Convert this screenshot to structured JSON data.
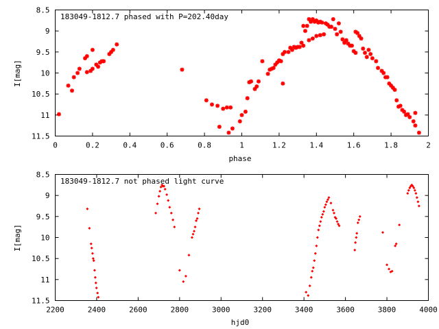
{
  "chart_data": [
    {
      "type": "scatter",
      "title": "183049-1812.7 phased with P=202.40day",
      "xlabel": "phase",
      "ylabel": "I[mag]",
      "xlim": [
        0,
        2
      ],
      "ylim": [
        11.5,
        8.5
      ],
      "y_inverted": true,
      "xticks": [
        "0",
        "0.2",
        "0.4",
        "0.6",
        "0.8",
        "1",
        "1.2",
        "1.4",
        "1.6",
        "1.8",
        "2"
      ],
      "yticks": [
        "8.5",
        "9",
        "9.5",
        "10",
        "10.5",
        "11",
        "11.5"
      ],
      "marker": "asterisk",
      "color": "#ff0000",
      "points": [
        [
          0.02,
          10.98
        ],
        [
          0.07,
          10.3
        ],
        [
          0.09,
          10.42
        ],
        [
          0.1,
          10.1
        ],
        [
          0.12,
          10.0
        ],
        [
          0.13,
          9.9
        ],
        [
          0.16,
          9.65
        ],
        [
          0.17,
          9.6
        ],
        [
          0.17,
          9.98
        ],
        [
          0.19,
          9.95
        ],
        [
          0.2,
          9.45
        ],
        [
          0.2,
          9.9
        ],
        [
          0.22,
          9.8
        ],
        [
          0.23,
          9.85
        ],
        [
          0.24,
          9.75
        ],
        [
          0.25,
          9.72
        ],
        [
          0.26,
          9.72
        ],
        [
          0.29,
          9.55
        ],
        [
          0.3,
          9.5
        ],
        [
          0.31,
          9.45
        ],
        [
          0.33,
          9.32
        ],
        [
          0.68,
          9.92
        ],
        [
          0.81,
          10.65
        ],
        [
          0.84,
          10.75
        ],
        [
          0.87,
          10.78
        ],
        [
          0.88,
          11.28
        ],
        [
          0.9,
          10.85
        ],
        [
          0.92,
          10.82
        ],
        [
          0.93,
          11.42
        ],
        [
          0.94,
          10.82
        ],
        [
          0.95,
          11.32
        ],
        [
          0.99,
          11.15
        ],
        [
          1.0,
          11.0
        ],
        [
          1.02,
          10.92
        ],
        [
          1.03,
          10.6
        ],
        [
          1.04,
          10.22
        ],
        [
          1.05,
          10.2
        ],
        [
          1.07,
          10.38
        ],
        [
          1.08,
          10.32
        ],
        [
          1.09,
          10.2
        ],
        [
          1.11,
          9.72
        ],
        [
          1.14,
          10.02
        ],
        [
          1.15,
          9.92
        ],
        [
          1.16,
          9.9
        ],
        [
          1.17,
          9.88
        ],
        [
          1.18,
          9.8
        ],
        [
          1.19,
          9.75
        ],
        [
          1.2,
          9.7
        ],
        [
          1.21,
          9.72
        ],
        [
          1.22,
          10.25
        ],
        [
          1.22,
          9.55
        ],
        [
          1.23,
          9.5
        ],
        [
          1.25,
          9.5
        ],
        [
          1.26,
          9.4
        ],
        [
          1.27,
          9.45
        ],
        [
          1.28,
          9.38
        ],
        [
          1.29,
          9.4
        ],
        [
          1.3,
          9.38
        ],
        [
          1.31,
          9.38
        ],
        [
          1.32,
          9.28
        ],
        [
          1.33,
          9.35
        ],
        [
          1.33,
          8.88
        ],
        [
          1.34,
          9.0
        ],
        [
          1.35,
          8.88
        ],
        [
          1.36,
          9.22
        ],
        [
          1.36,
          8.72
        ],
        [
          1.37,
          8.78
        ],
        [
          1.38,
          9.18
        ],
        [
          1.38,
          8.72
        ],
        [
          1.39,
          8.78
        ],
        [
          1.4,
          9.12
        ],
        [
          1.4,
          8.75
        ],
        [
          1.41,
          8.8
        ],
        [
          1.42,
          9.1
        ],
        [
          1.42,
          8.78
        ],
        [
          1.43,
          8.8
        ],
        [
          1.44,
          9.08
        ],
        [
          1.45,
          8.82
        ],
        [
          1.46,
          8.85
        ],
        [
          1.47,
          8.9
        ],
        [
          1.48,
          8.9
        ],
        [
          1.49,
          8.72
        ],
        [
          1.5,
          8.95
        ],
        [
          1.51,
          9.08
        ],
        [
          1.52,
          8.82
        ],
        [
          1.53,
          9.02
        ],
        [
          1.54,
          9.2
        ],
        [
          1.55,
          9.28
        ],
        [
          1.56,
          9.22
        ],
        [
          1.57,
          9.3
        ],
        [
          1.58,
          9.35
        ],
        [
          1.59,
          9.35
        ],
        [
          1.6,
          9.48
        ],
        [
          1.61,
          9.52
        ],
        [
          1.61,
          9.02
        ],
        [
          1.62,
          9.05
        ],
        [
          1.63,
          9.12
        ],
        [
          1.64,
          9.18
        ],
        [
          1.65,
          9.42
        ],
        [
          1.66,
          9.52
        ],
        [
          1.67,
          9.62
        ],
        [
          1.68,
          9.45
        ],
        [
          1.69,
          9.55
        ],
        [
          1.7,
          9.65
        ],
        [
          1.72,
          9.72
        ],
        [
          1.73,
          9.88
        ],
        [
          1.75,
          9.95
        ],
        [
          1.76,
          10.0
        ],
        [
          1.77,
          10.1
        ],
        [
          1.78,
          10.1
        ],
        [
          1.79,
          10.25
        ],
        [
          1.8,
          10.3
        ],
        [
          1.81,
          10.35
        ],
        [
          1.82,
          10.4
        ],
        [
          1.83,
          10.65
        ],
        [
          1.84,
          10.8
        ],
        [
          1.85,
          10.78
        ],
        [
          1.86,
          10.88
        ],
        [
          1.87,
          10.92
        ],
        [
          1.88,
          11.0
        ],
        [
          1.89,
          10.98
        ],
        [
          1.9,
          11.05
        ],
        [
          1.92,
          11.15
        ],
        [
          1.93,
          11.25
        ],
        [
          1.93,
          10.95
        ],
        [
          1.95,
          11.42
        ]
      ]
    },
    {
      "type": "scatter",
      "title": "183049-1812.7 not phased light curve",
      "xlabel": "hjd0",
      "ylabel": "I[mag]",
      "xlim": [
        2200,
        4000
      ],
      "ylim": [
        11.5,
        8.5
      ],
      "y_inverted": true,
      "xticks": [
        "2200",
        "2400",
        "2600",
        "2800",
        "3000",
        "3200",
        "3400",
        "3600",
        "3800",
        "4000"
      ],
      "yticks": [
        "8.5",
        "9",
        "9.5",
        "10",
        "10.5",
        "11",
        "11.5"
      ],
      "marker": "diamond",
      "color": "#ff0000",
      "points": [
        [
          2355,
          9.32
        ],
        [
          2365,
          9.78
        ],
        [
          2373,
          10.15
        ],
        [
          2376,
          10.25
        ],
        [
          2380,
          10.38
        ],
        [
          2383,
          10.5
        ],
        [
          2386,
          10.55
        ],
        [
          2390,
          10.78
        ],
        [
          2393,
          10.95
        ],
        [
          2396,
          11.08
        ],
        [
          2399,
          11.2
        ],
        [
          2404,
          11.32
        ],
        [
          2408,
          11.42
        ],
        [
          2685,
          9.42
        ],
        [
          2693,
          9.2
        ],
        [
          2700,
          9.02
        ],
        [
          2705,
          8.9
        ],
        [
          2710,
          8.8
        ],
        [
          2715,
          8.75
        ],
        [
          2720,
          8.78
        ],
        [
          2725,
          8.78
        ],
        [
          2730,
          8.85
        ],
        [
          2738,
          8.98
        ],
        [
          2745,
          9.12
        ],
        [
          2752,
          9.28
        ],
        [
          2760,
          9.42
        ],
        [
          2768,
          9.58
        ],
        [
          2775,
          9.75
        ],
        [
          2800,
          10.78
        ],
        [
          2818,
          11.05
        ],
        [
          2830,
          10.92
        ],
        [
          2845,
          10.42
        ],
        [
          2860,
          10.0
        ],
        [
          2865,
          9.92
        ],
        [
          2870,
          9.85
        ],
        [
          2875,
          9.75
        ],
        [
          2880,
          9.6
        ],
        [
          2885,
          9.55
        ],
        [
          2890,
          9.42
        ],
        [
          2895,
          9.32
        ],
        [
          3410,
          11.3
        ],
        [
          3420,
          11.38
        ],
        [
          3428,
          11.15
        ],
        [
          3435,
          10.95
        ],
        [
          3440,
          10.8
        ],
        [
          3445,
          10.72
        ],
        [
          3450,
          10.55
        ],
        [
          3455,
          10.38
        ],
        [
          3460,
          10.2
        ],
        [
          3465,
          10.0
        ],
        [
          3470,
          9.82
        ],
        [
          3475,
          9.72
        ],
        [
          3480,
          9.62
        ],
        [
          3485,
          9.52
        ],
        [
          3490,
          9.45
        ],
        [
          3495,
          9.38
        ],
        [
          3500,
          9.28
        ],
        [
          3505,
          9.22
        ],
        [
          3510,
          9.15
        ],
        [
          3515,
          9.1
        ],
        [
          3520,
          9.05
        ],
        [
          3530,
          9.18
        ],
        [
          3540,
          9.35
        ],
        [
          3545,
          9.42
        ],
        [
          3550,
          9.52
        ],
        [
          3555,
          9.55
        ],
        [
          3560,
          9.62
        ],
        [
          3565,
          9.68
        ],
        [
          3570,
          9.72
        ],
        [
          3645,
          10.3
        ],
        [
          3648,
          10.12
        ],
        [
          3652,
          10.0
        ],
        [
          3655,
          9.9
        ],
        [
          3660,
          9.65
        ],
        [
          3665,
          9.58
        ],
        [
          3670,
          9.5
        ],
        [
          3780,
          9.88
        ],
        [
          3800,
          10.65
        ],
        [
          3810,
          10.75
        ],
        [
          3818,
          10.82
        ],
        [
          3825,
          10.8
        ],
        [
          3840,
          10.2
        ],
        [
          3845,
          10.15
        ],
        [
          3860,
          9.7
        ],
        [
          3900,
          8.95
        ],
        [
          3905,
          8.88
        ],
        [
          3910,
          8.82
        ],
        [
          3915,
          8.78
        ],
        [
          3920,
          8.75
        ],
        [
          3925,
          8.78
        ],
        [
          3930,
          8.82
        ],
        [
          3935,
          8.88
        ],
        [
          3940,
          8.95
        ],
        [
          3945,
          9.05
        ],
        [
          3950,
          9.15
        ],
        [
          3955,
          9.25
        ]
      ]
    }
  ]
}
